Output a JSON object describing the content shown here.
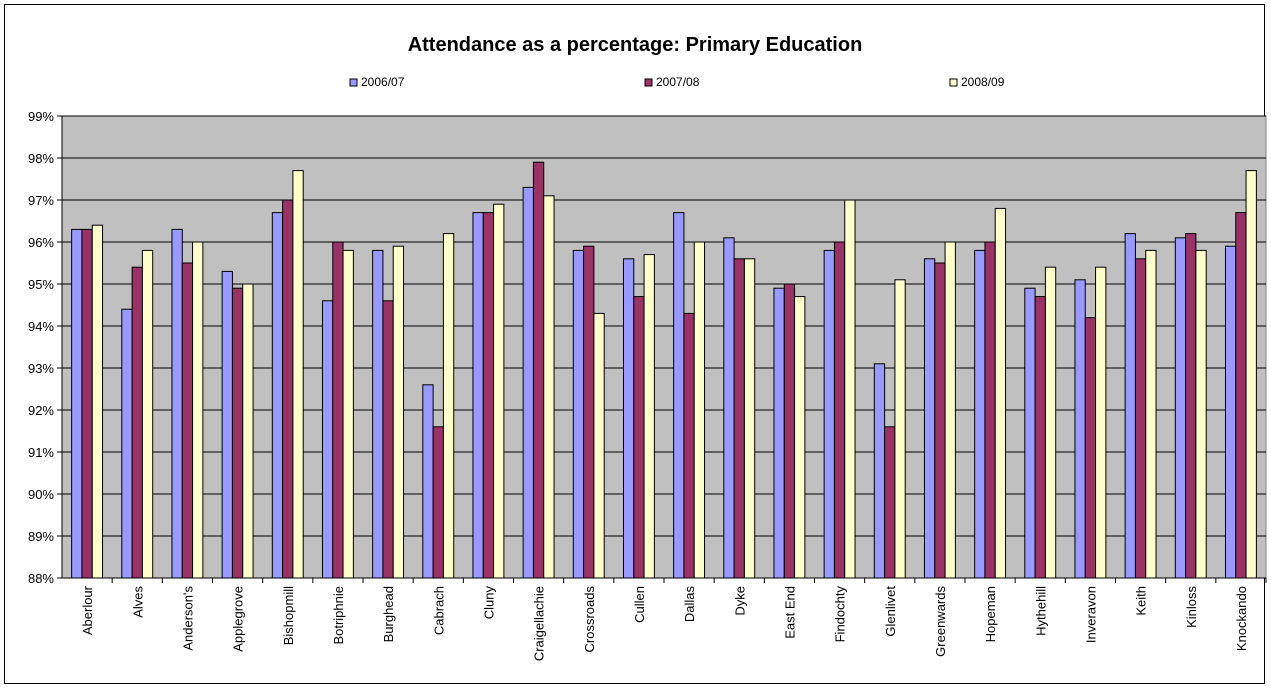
{
  "chart_data": {
    "type": "bar",
    "title": "Attendance as a percentage: Primary Education",
    "xlabel": "",
    "ylabel": "",
    "ylim": [
      88,
      99
    ],
    "y_ticks": [
      "88%",
      "89%",
      "90%",
      "91%",
      "92%",
      "93%",
      "94%",
      "95%",
      "96%",
      "97%",
      "98%",
      "99%"
    ],
    "grid": true,
    "legend_position": "top",
    "plot_background": "#C0C0C0",
    "categories": [
      "Aberlour",
      "Alves",
      "Anderson's",
      "Applegrove",
      "Bishopmill",
      "Botriphnie",
      "Burghead",
      "Cabrach",
      "Cluny",
      "Craigellachie",
      "Crossroads",
      "Cullen",
      "Dallas",
      "Dyke",
      "East End",
      "Findochty",
      "Glenlivet",
      "Greenwards",
      "Hopeman",
      "Hythehill",
      "Inveravon",
      "Keith",
      "Kinloss",
      "Knockando"
    ],
    "series": [
      {
        "name": "2006/07",
        "color": "#9999FF",
        "values": [
          96.3,
          94.4,
          96.3,
          95.3,
          96.7,
          94.6,
          95.8,
          92.6,
          96.7,
          97.3,
          95.8,
          95.6,
          96.7,
          96.1,
          94.9,
          95.8,
          93.1,
          95.6,
          95.8,
          94.9,
          95.1,
          96.2,
          96.1,
          95.9
        ]
      },
      {
        "name": "2007/08",
        "color": "#993366",
        "values": [
          96.3,
          95.4,
          95.5,
          94.9,
          97.0,
          96.0,
          94.6,
          91.6,
          96.7,
          97.9,
          95.9,
          94.7,
          94.3,
          95.6,
          95.0,
          96.0,
          91.6,
          95.5,
          96.0,
          94.7,
          94.2,
          95.6,
          96.2,
          96.7
        ]
      },
      {
        "name": "2008/09",
        "color": "#FFFFCC",
        "values": [
          96.4,
          95.8,
          96.0,
          95.0,
          97.7,
          95.8,
          95.9,
          96.2,
          96.9,
          97.1,
          94.3,
          95.7,
          96.0,
          95.6,
          94.7,
          97.0,
          95.1,
          96.0,
          96.8,
          95.4,
          95.4,
          95.8,
          95.8,
          97.7
        ]
      }
    ]
  }
}
